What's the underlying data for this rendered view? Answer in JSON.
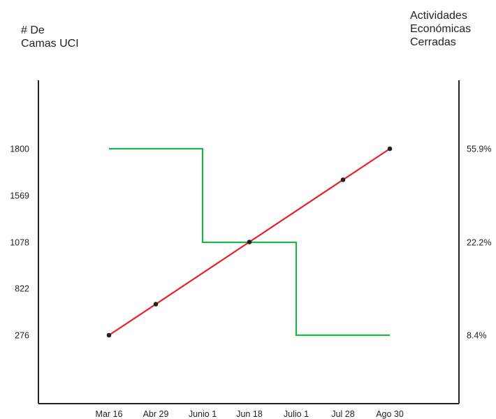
{
  "chart_data": {
    "type": "line",
    "left_axis_title": [
      "# De",
      "Camas UCI"
    ],
    "right_axis_title": [
      "Actividades",
      "Económicas",
      "Cerradas"
    ],
    "categories": [
      "Mar 16",
      "Abr 29",
      "Junio 1",
      "Jun 18",
      "Julio 1",
      "Jul 28",
      "Ago 30"
    ],
    "left_ticks": [
      "1800",
      "1569",
      "1078",
      "822",
      "276"
    ],
    "right_ticks": [
      "55.9%",
      "22.2%",
      "8.4%"
    ],
    "series": [
      {
        "axis": "left",
        "color": "#e8202a",
        "markers": true,
        "marker_color": "#222222",
        "points": [
          {
            "x": "Mar 16",
            "level": 0.0
          },
          {
            "x": "Abr 29",
            "level": 0.333
          },
          {
            "x": "Jun 18",
            "level": 1.0
          },
          {
            "x": "Jul 28",
            "level": 1.667
          },
          {
            "x": "Ago 30",
            "level": 2.0
          }
        ]
      },
      {
        "axis": "right",
        "step": true,
        "color": "#22b24c",
        "markers": false,
        "points": [
          {
            "x": "Mar 16",
            "value": "55.9%"
          },
          {
            "x": "Junio 1",
            "value": "55.9%"
          },
          {
            "x": "Junio 1",
            "value": "22.2%"
          },
          {
            "x": "Julio 1",
            "value": "22.2%"
          },
          {
            "x": "Julio 1",
            "value": "8.4%"
          },
          {
            "x": "Ago 30",
            "value": "8.4%"
          }
        ]
      }
    ],
    "grid": false,
    "legend": "none"
  }
}
